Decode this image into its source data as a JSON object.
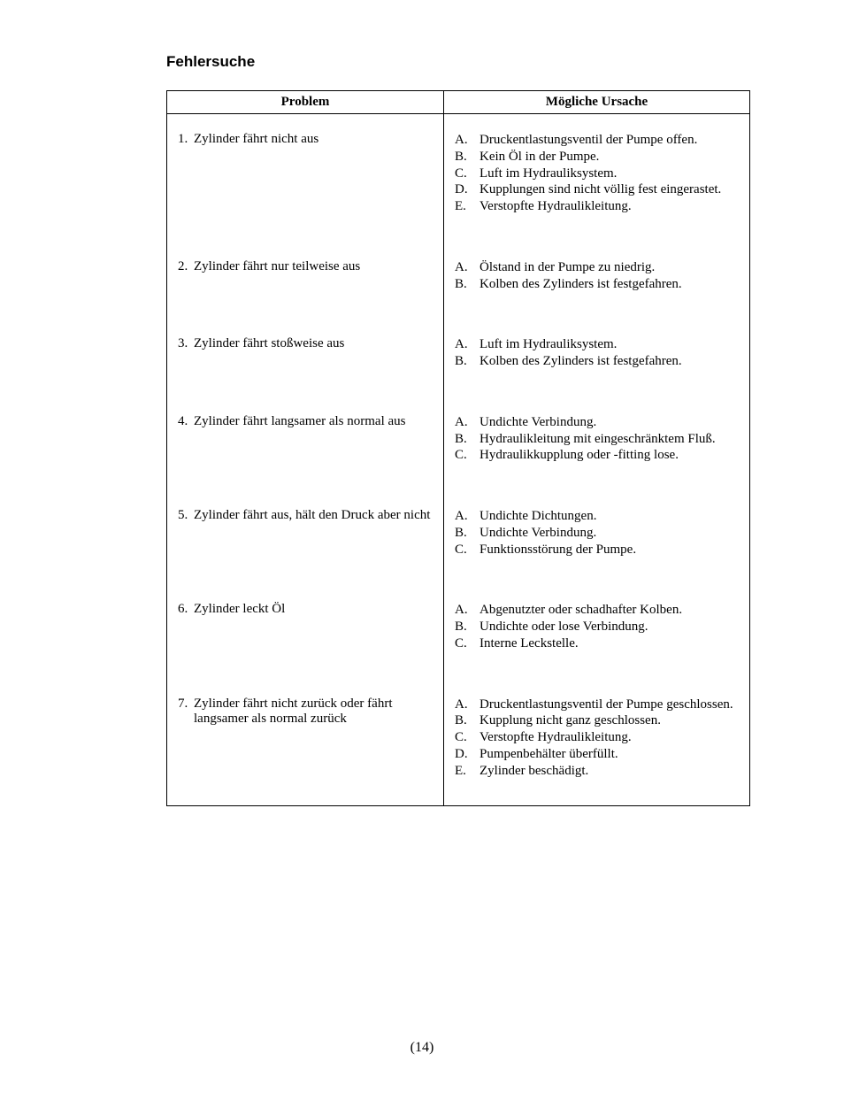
{
  "heading": "Fehlersuche",
  "table": {
    "headers": {
      "problem": "Problem",
      "cause": "Mögliche Ursache"
    },
    "rows": [
      {
        "num": "1.",
        "problem": "Zylinder fährt nicht aus",
        "causes": [
          {
            "l": "A.",
            "t": "Druckentlastungsventil der Pumpe offen."
          },
          {
            "l": "B.",
            "t": "Kein Öl in der Pumpe."
          },
          {
            "l": "C.",
            "t": "Luft im Hydrauliksystem."
          },
          {
            "l": "D.",
            "t": "Kupplungen sind nicht völlig fest eingerastet."
          },
          {
            "l": "E.",
            "t": "Verstopfte Hydraulikleitung."
          }
        ]
      },
      {
        "num": "2.",
        "problem": "Zylinder fährt nur teilweise aus",
        "causes": [
          {
            "l": "A.",
            "t": "Ölstand in der Pumpe zu niedrig."
          },
          {
            "l": "B.",
            "t": "Kolben des Zylinders ist festgefahren."
          }
        ]
      },
      {
        "num": "3.",
        "problem": "Zylinder fährt stoßweise aus",
        "causes": [
          {
            "l": "A.",
            "t": "Luft im Hydrauliksystem."
          },
          {
            "l": "B.",
            "t": "Kolben des Zylinders ist festgefahren."
          }
        ]
      },
      {
        "num": "4.",
        "problem": "Zylinder fährt langsamer als normal aus",
        "causes": [
          {
            "l": "A.",
            "t": "Undichte Verbindung."
          },
          {
            "l": "B.",
            "t": "Hydraulikleitung mit eingeschränktem Fluß."
          },
          {
            "l": "C.",
            "t": "Hydraulikkupplung oder -fitting lose."
          }
        ]
      },
      {
        "num": "5.",
        "problem": "Zylinder fährt aus, hält den Druck aber nicht",
        "causes": [
          {
            "l": "A.",
            "t": "Undichte Dichtungen."
          },
          {
            "l": "B.",
            "t": "Undichte Verbindung."
          },
          {
            "l": "C.",
            "t": "Funktionsstörung der Pumpe."
          }
        ]
      },
      {
        "num": "6.",
        "problem": "Zylinder leckt Öl",
        "causes": [
          {
            "l": "A.",
            "t": "Abgenutzter oder schadhafter Kolben."
          },
          {
            "l": "B.",
            "t": "Undichte oder lose Verbindung."
          },
          {
            "l": "C.",
            "t": "Interne Leckstelle."
          }
        ]
      },
      {
        "num": "7.",
        "problem": "Zylinder fährt nicht zurück oder fährt langsamer als normal zurück",
        "causes": [
          {
            "l": "A.",
            "t": "Druckentlastungsventil der Pumpe geschlossen."
          },
          {
            "l": "B.",
            "t": "Kupplung nicht ganz geschlossen."
          },
          {
            "l": "C.",
            "t": "Verstopfte Hydraulikleitung."
          },
          {
            "l": "D.",
            "t": "Pumpenbehälter überfüllt."
          },
          {
            "l": "E.",
            "t": "Zylinder beschädigt."
          }
        ]
      }
    ]
  },
  "page_number": "(14)"
}
